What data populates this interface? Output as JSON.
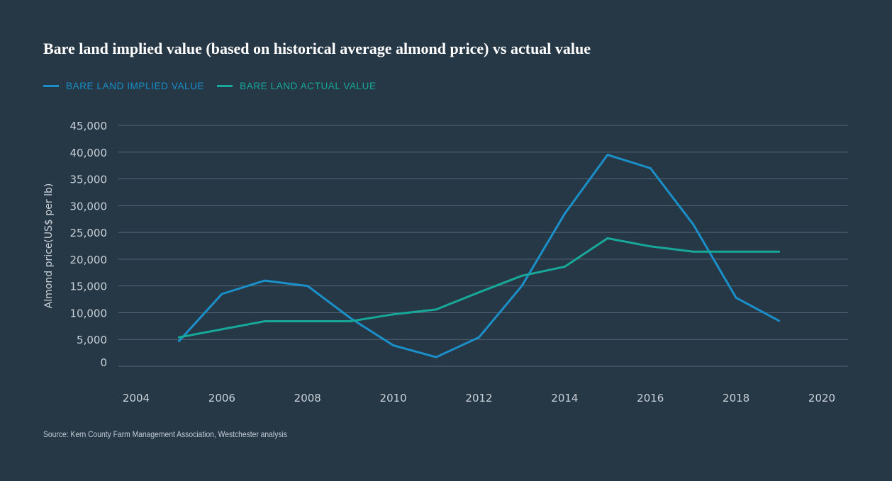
{
  "title": "Bare land implied value (based on historical average almond price) vs actual value",
  "source": "Source: Kern County Farm Management Association, Westchester analysis",
  "colors": {
    "background": "#263746",
    "implied": "#1a8fc8",
    "actual": "#17a899",
    "grid": "#56677a"
  },
  "chart_data": {
    "type": "line",
    "title": "Bare land implied value (based on historical average almond price) vs actual value",
    "xlabel": "",
    "ylabel": "Almond price(US$ per lb)",
    "xlim": [
      2004,
      2020
    ],
    "ylim": [
      0,
      45000
    ],
    "x_ticks": [
      "2004",
      "2006",
      "2008",
      "2010",
      "2012",
      "2014",
      "2016",
      "2018",
      "2020"
    ],
    "y_ticks": [
      "45,000",
      "40,000",
      "35,000",
      "30,000",
      "25,000",
      "20,000",
      "15,000",
      "10,000",
      "5,000",
      "0"
    ],
    "grid": true,
    "legend_position": "top-left",
    "series": [
      {
        "name": "BARE LAND IMPLIED VALUE",
        "color": "#1a8fc8",
        "x": [
          2005,
          2006,
          2007,
          2008,
          2009,
          2010,
          2011,
          2012,
          2013,
          2014,
          2015,
          2016,
          2017,
          2018,
          2019
        ],
        "values": [
          4700,
          13500,
          16000,
          15000,
          9000,
          3900,
          1700,
          5400,
          15000,
          28500,
          39500,
          37000,
          26500,
          12800,
          8500
        ]
      },
      {
        "name": "BARE LAND ACTUAL VALUE",
        "color": "#17a899",
        "x": [
          2005,
          2006,
          2007,
          2008,
          2009,
          2010,
          2011,
          2012,
          2013,
          2014,
          2015,
          2016,
          2017,
          2018,
          2019
        ],
        "values": [
          5400,
          6900,
          8400,
          8400,
          8400,
          9700,
          10600,
          13800,
          16900,
          18600,
          23900,
          22400,
          21400,
          21400,
          21400
        ]
      }
    ]
  }
}
